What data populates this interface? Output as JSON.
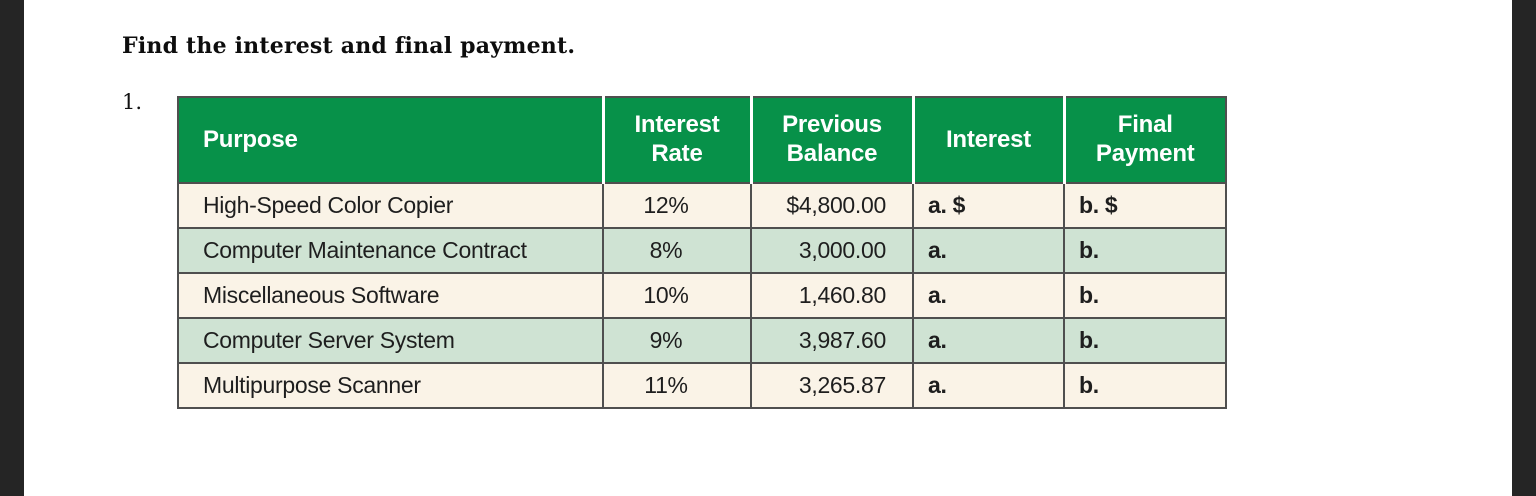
{
  "page": {
    "instruction": "Find the interest and final payment.",
    "problem_number": "1."
  },
  "table": {
    "columns": [
      {
        "label": "Purpose"
      },
      {
        "label": "Interest Rate"
      },
      {
        "label": "Previous Balance"
      },
      {
        "label": "Interest"
      },
      {
        "label": "Final Payment"
      }
    ],
    "rows": [
      {
        "purpose": "High-Speed Color Copier",
        "interest_rate": "12%",
        "previous_balance": "$4,800.00",
        "interest": "a. $",
        "final_payment": "b. $"
      },
      {
        "purpose": "Computer Maintenance Contract",
        "interest_rate": "8%",
        "previous_balance": "3,000.00",
        "interest": "a.",
        "final_payment": "b."
      },
      {
        "purpose": "Miscellaneous Software",
        "interest_rate": "10%",
        "previous_balance": "1,460.80",
        "interest": "a.",
        "final_payment": "b."
      },
      {
        "purpose": "Computer Server System",
        "interest_rate": "9%",
        "previous_balance": "3,987.60",
        "interest": "a.",
        "final_payment": "b."
      },
      {
        "purpose": "Multipurpose Scanner",
        "interest_rate": "11%",
        "previous_balance": "3,265.87",
        "interest": "a.",
        "final_payment": "b."
      }
    ],
    "colors": {
      "header_bg": "#079149",
      "header_text": "#ffffff",
      "row_cream": "#faf3e7",
      "row_green": "#cfe3d3",
      "grid": "#4f4f4f",
      "viewer_margin": "#252525"
    }
  }
}
